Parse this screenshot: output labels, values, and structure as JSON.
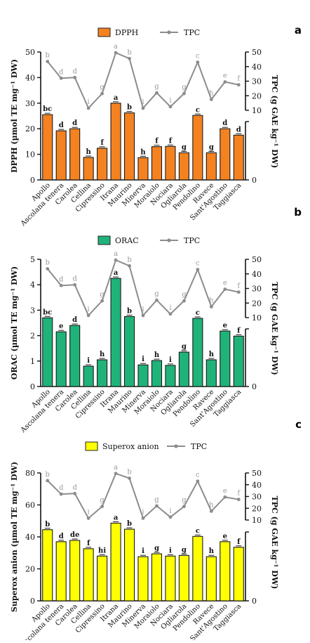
{
  "chart_data": [
    {
      "type": "bar",
      "panel_label": "a",
      "categories": [
        "Apollo",
        "Ascolana tenera",
        "Carolea",
        "Cellina",
        "Cipressino",
        "Itrana",
        "Maurino",
        "Minerva",
        "Moraiolo",
        "Nociara",
        "Ogliarola",
        "Pendolino",
        "Ravece",
        "Sant'Agostino",
        "Taggiasca"
      ],
      "ylabel": "DPPH (µmol TE mg⁻¹ DW)",
      "y2label": "TPC (g GAE kg⁻¹ DW)",
      "ylim": [
        0,
        50
      ],
      "yticks": [
        0,
        10,
        20,
        30,
        40,
        50
      ],
      "y2lim": [
        0,
        50
      ],
      "y2ticks": [
        10,
        20,
        30,
        40,
        50
      ],
      "y2_lower_ticks": [
        0
      ],
      "bar_color": "#f58220",
      "line_color": "#8c8c8c",
      "legend": {
        "bar": "DPPH",
        "line": "TPC",
        "placement": "top"
      },
      "series": [
        {
          "name": "DPPH",
          "kind": "bar",
          "values": [
            25.5,
            19.2,
            20.0,
            8.8,
            12.4,
            30.0,
            26.2,
            8.7,
            13.0,
            13.1,
            10.6,
            25.2,
            10.6,
            20.0,
            17.5
          ],
          "letters": [
            "bc",
            "d",
            "d",
            "h",
            "f",
            "a",
            "b",
            "h",
            "f",
            "f",
            "g",
            "c",
            "g",
            "d",
            "d"
          ]
        },
        {
          "name": "TPC",
          "kind": "line",
          "values": [
            43.5,
            32.0,
            32.5,
            11.5,
            21.5,
            49.5,
            45.5,
            11.5,
            22.0,
            12.5,
            21.5,
            43.0,
            17.5,
            29.5,
            27.5
          ],
          "letters": [
            "b",
            "d",
            "d",
            "i",
            "g",
            "a",
            "b",
            "i",
            "g",
            "i",
            "g",
            "c",
            "h",
            "e",
            "f"
          ]
        }
      ]
    },
    {
      "type": "bar",
      "panel_label": "b",
      "categories": [
        "Apollo",
        "Ascolana tenera",
        "Carolea",
        "Cellina",
        "Cipressino",
        "Itrana",
        "Maurino",
        "Minerva",
        "Moraiolo",
        "Nociara",
        "Ogliarola",
        "Pendolino",
        "Ravece",
        "Sant'Agostino",
        "Taggiasca"
      ],
      "ylabel": "ORAC (µmol TE mg⁻¹ DW)",
      "y2label": "TPC (g GAE kg⁻¹ DW)",
      "ylim": [
        0,
        5
      ],
      "yticks": [
        0,
        1,
        2,
        3,
        4,
        5
      ],
      "y2lim": [
        0,
        50
      ],
      "y2ticks": [
        10,
        20,
        30,
        40,
        50
      ],
      "y2_lower_ticks": [
        0
      ],
      "bar_color": "#1fb37a",
      "line_color": "#8c8c8c",
      "legend": {
        "bar": "ORAC",
        "line": "TPC",
        "placement": "top"
      },
      "series": [
        {
          "name": "ORAC",
          "kind": "bar",
          "values": [
            2.7,
            2.15,
            2.4,
            0.8,
            1.05,
            4.25,
            2.75,
            0.85,
            1.02,
            0.83,
            1.35,
            2.68,
            1.05,
            2.18,
            1.98
          ],
          "letters": [
            "bc",
            "e",
            "d",
            "i",
            "h",
            "a",
            "b",
            "i",
            "h",
            "i",
            "g",
            "c",
            "h",
            "e",
            "f"
          ]
        },
        {
          "name": "TPC",
          "kind": "line",
          "values": [
            43.5,
            32.0,
            32.5,
            11.5,
            21.5,
            49.5,
            45.5,
            11.5,
            22.0,
            12.5,
            21.5,
            43.0,
            17.5,
            29.5,
            27.5
          ],
          "letters": [
            "b",
            "d",
            "d",
            "i",
            "g",
            "a",
            "b",
            "i",
            "g",
            "i",
            "g",
            "c",
            "h",
            "e",
            "f"
          ]
        }
      ]
    },
    {
      "type": "bar",
      "panel_label": "c",
      "categories": [
        "Apollo",
        "Ascolana tenera",
        "Carolea",
        "Cellina",
        "Cipressino",
        "Itrana",
        "Maurino",
        "Minerva",
        "Moraiolo",
        "Nociara",
        "Ogliarola",
        "Pendolino",
        "Ravece",
        "Sant'Agostino",
        "Taggiasca"
      ],
      "ylabel": "Superox anion (µmol TE mg⁻¹ DW)",
      "y2label": "TPC (g GAE kg⁻¹ DW)",
      "ylim": [
        0,
        80
      ],
      "yticks": [
        0,
        20,
        40,
        60,
        80
      ],
      "y2lim": [
        0,
        50
      ],
      "y2ticks": [
        10,
        20,
        30,
        40,
        50
      ],
      "y2_lower_ticks": [
        0
      ],
      "bar_color": "#ffff00",
      "line_color": "#8c8c8c",
      "legend": {
        "bar": "Superox anion",
        "line": "TPC",
        "placement": "top"
      },
      "series": [
        {
          "name": "Superox anion",
          "kind": "bar",
          "values": [
            44.5,
            37.0,
            37.8,
            32.6,
            28.0,
            48.6,
            44.8,
            27.6,
            29.4,
            28.0,
            28.4,
            40.3,
            27.6,
            37.0,
            33.5
          ],
          "letters": [
            "b",
            "d",
            "de",
            "f",
            "hi",
            "a",
            "b",
            "i",
            "g",
            "i",
            "g",
            "c",
            "h",
            "e",
            "f"
          ]
        },
        {
          "name": "TPC",
          "kind": "line",
          "values": [
            43.5,
            32.0,
            32.5,
            11.5,
            21.5,
            49.5,
            45.5,
            11.5,
            22.0,
            12.5,
            21.5,
            43.0,
            17.5,
            29.5,
            27.5
          ],
          "letters": [
            "b",
            "d",
            "d",
            "i",
            "g",
            "a",
            "b",
            "i",
            "g",
            "i",
            "g",
            "c",
            "h",
            "e",
            "f"
          ]
        }
      ]
    }
  ]
}
